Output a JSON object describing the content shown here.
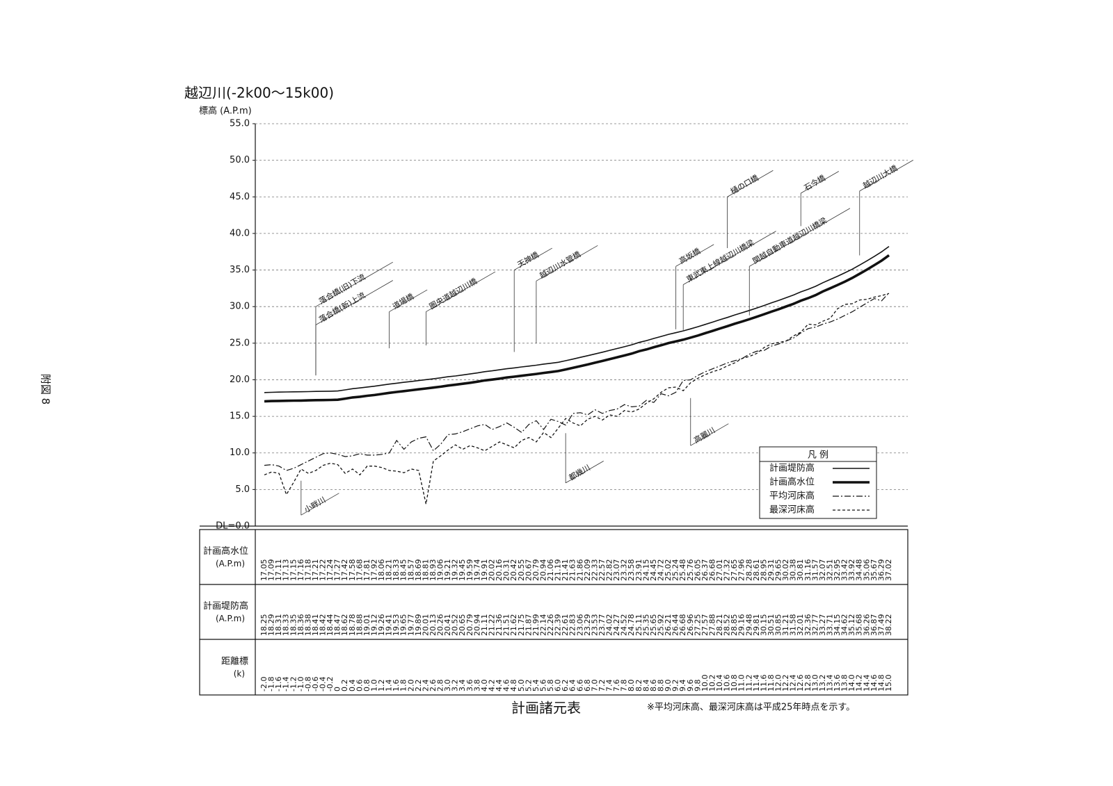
{
  "page": {
    "label": "附図 8"
  },
  "chart_data": {
    "type": "line",
    "title": "越辺川(-2k00～15k00)",
    "y_label": "標高 (A.P.m)",
    "ylim": [
      0,
      55
    ],
    "yticks": [
      {
        "value": 0,
        "label": "DL=0.0"
      },
      {
        "value": 5,
        "label": "5.0"
      },
      {
        "value": 10,
        "label": "10.0"
      },
      {
        "value": 15,
        "label": "15.0"
      },
      {
        "value": 20,
        "label": "20.0"
      },
      {
        "value": 25,
        "label": "25.0"
      },
      {
        "value": 30,
        "label": "30.0"
      },
      {
        "value": 35,
        "label": "35.0"
      },
      {
        "value": 40,
        "label": "40.0"
      },
      {
        "value": 45,
        "label": "45.0"
      },
      {
        "value": 50,
        "label": "50.0"
      },
      {
        "value": 55,
        "label": "55.0"
      }
    ],
    "grid": true,
    "categories": [
      "-2.0",
      "-1.8",
      "-1.6",
      "-1.4",
      "-1.2",
      "-1.0",
      "-0.8",
      "-0.6",
      "-0.4",
      "-0.2",
      "0",
      "0.2",
      "0.4",
      "0.6",
      "0.8",
      "1.0",
      "1.2",
      "1.4",
      "1.6",
      "1.8",
      "2.0",
      "2.2",
      "2.4",
      "2.6",
      "2.8",
      "3.0",
      "3.2",
      "3.4",
      "3.6",
      "3.8",
      "4.0",
      "4.2",
      "4.4",
      "4.6",
      "4.8",
      "5.0",
      "5.2",
      "5.4",
      "5.6",
      "5.8",
      "6.0",
      "6.2",
      "6.4",
      "6.6",
      "6.8",
      "7.0",
      "7.2",
      "7.4",
      "7.6",
      "7.8",
      "8.0",
      "8.2",
      "8.4",
      "8.6",
      "8.8",
      "9.0",
      "9.2",
      "9.4",
      "9.6",
      "9.8",
      "10.0",
      "10.2",
      "10.4",
      "10.6",
      "10.8",
      "11.0",
      "11.2",
      "11.4",
      "11.6",
      "11.8",
      "12.0",
      "12.2",
      "12.4",
      "12.6",
      "12.8",
      "13.0",
      "13.2",
      "13.4",
      "13.6",
      "13.8",
      "14.0",
      "14.2",
      "14.4",
      "14.6",
      "14.8",
      "15.0"
    ],
    "legend_title": "凡 例",
    "legend": "lower right",
    "series": [
      {
        "name": "計画堤防高",
        "color": "#111111",
        "style": "solid",
        "values": [
          18.25,
          18.29,
          18.31,
          18.33,
          18.35,
          18.36,
          18.38,
          18.41,
          18.42,
          18.44,
          18.47,
          18.62,
          18.78,
          18.88,
          19.01,
          19.12,
          19.26,
          19.41,
          19.53,
          19.65,
          19.77,
          19.89,
          20.01,
          20.13,
          20.26,
          20.41,
          20.52,
          20.65,
          20.79,
          20.94,
          21.11,
          21.22,
          21.36,
          21.51,
          21.62,
          21.75,
          21.87,
          21.99,
          22.14,
          22.26,
          22.39,
          22.61,
          22.83,
          23.06,
          23.29,
          23.53,
          23.77,
          24.02,
          24.27,
          24.52,
          24.78,
          25.11,
          25.35,
          25.65,
          25.92,
          26.21,
          26.44,
          26.68,
          26.96,
          27.25,
          27.57,
          27.88,
          28.21,
          28.52,
          28.85,
          29.16,
          29.48,
          29.81,
          30.15,
          30.51,
          30.85,
          31.21,
          31.58,
          32.01,
          32.36,
          32.77,
          33.27,
          33.71,
          34.15,
          34.62,
          35.12,
          35.68,
          36.26,
          36.87,
          37.49,
          38.22
        ]
      },
      {
        "name": "計画高水位",
        "color": "#111111",
        "style": "thick",
        "values": [
          17.05,
          17.09,
          17.11,
          17.13,
          17.15,
          17.16,
          17.18,
          17.21,
          17.22,
          17.24,
          17.27,
          17.42,
          17.58,
          17.68,
          17.81,
          17.92,
          18.06,
          18.21,
          18.33,
          18.45,
          18.57,
          18.69,
          18.81,
          18.93,
          19.06,
          19.21,
          19.32,
          19.45,
          19.59,
          19.74,
          19.91,
          20.02,
          20.16,
          20.31,
          20.42,
          20.55,
          20.67,
          20.79,
          20.94,
          21.06,
          21.19,
          21.41,
          21.63,
          21.86,
          22.09,
          22.33,
          22.57,
          22.82,
          23.07,
          23.32,
          23.58,
          23.91,
          24.15,
          24.45,
          24.72,
          25.02,
          25.24,
          25.48,
          25.76,
          26.05,
          26.37,
          26.68,
          27.01,
          27.32,
          27.65,
          27.96,
          28.28,
          28.61,
          28.95,
          29.31,
          29.65,
          30.02,
          30.38,
          30.81,
          31.16,
          31.57,
          32.07,
          32.51,
          32.95,
          33.42,
          33.92,
          34.48,
          35.06,
          35.67,
          36.29,
          37.02
        ]
      },
      {
        "name": "平均河床高",
        "color": "#111111",
        "style": "dashdot",
        "values": [
          8.3,
          8.4,
          8.2,
          7.6,
          7.9,
          8.4,
          8.9,
          9.4,
          9.9,
          10.0,
          9.8,
          9.5,
          9.6,
          9.9,
          9.7,
          9.7,
          9.8,
          10.0,
          11.7,
          10.5,
          11.5,
          12.0,
          12.2,
          10.3,
          11.2,
          12.5,
          12.6,
          12.9,
          13.3,
          13.7,
          13.9,
          13.2,
          13.6,
          14.1,
          13.5,
          12.8,
          13.9,
          14.4,
          13.2,
          14.6,
          14.3,
          13.8,
          15.4,
          15.5,
          15.2,
          15.9,
          15.4,
          15.8,
          16.0,
          16.6,
          16.3,
          16.4,
          17.2,
          16.9,
          18.1,
          17.8,
          18.3,
          19.9,
          20.0,
          20.6,
          21.1,
          21.5,
          21.9,
          22.3,
          22.6,
          22.9,
          23.5,
          23.9,
          24.0,
          24.6,
          24.9,
          25.3,
          25.7,
          26.4,
          27.0,
          27.2,
          27.6,
          27.9,
          28.3,
          28.8,
          29.3,
          29.9,
          30.5,
          31.1,
          30.8,
          31.9
        ]
      },
      {
        "name": "最深河床高",
        "color": "#111111",
        "style": "dashed",
        "values": [
          7.0,
          7.4,
          7.2,
          4.3,
          6.0,
          7.8,
          7.2,
          7.6,
          8.3,
          8.6,
          8.4,
          7.2,
          7.8,
          7.0,
          8.2,
          8.2,
          8.0,
          7.6,
          7.5,
          7.3,
          7.8,
          7.6,
          3.0,
          8.9,
          9.6,
          10.4,
          11.1,
          10.5,
          11.0,
          10.7,
          10.3,
          10.9,
          11.5,
          11.1,
          10.7,
          11.7,
          12.1,
          11.5,
          12.8,
          12.1,
          13.4,
          14.7,
          14.1,
          13.7,
          14.6,
          15.0,
          14.5,
          15.2,
          15.0,
          15.8,
          15.6,
          16.0,
          16.8,
          17.4,
          18.3,
          18.9,
          19.0,
          18.5,
          19.6,
          20.2,
          20.7,
          21.1,
          21.4,
          21.9,
          22.3,
          22.9,
          23.2,
          23.6,
          24.4,
          24.9,
          25.1,
          25.3,
          26.0,
          26.5,
          27.6,
          27.5,
          28.0,
          28.4,
          29.7,
          30.3,
          30.4,
          30.9,
          31.0,
          31.3,
          31.5,
          31.8
        ]
      }
    ],
    "annotations": [
      {
        "text": "落合橋(旧)下流",
        "x": "-0.6"
      },
      {
        "text": "落合橋(新)上流",
        "x": "-0.6"
      },
      {
        "text": "道場橋",
        "x": "1.4"
      },
      {
        "text": "圏央道越辺川橋",
        "x": "2.4"
      },
      {
        "text": "天神橋",
        "x": "4.8"
      },
      {
        "text": "越辺川水管橋",
        "x": "5.4"
      },
      {
        "text": "高坂橋",
        "x": "9.2"
      },
      {
        "text": "東武東上線越辺川橋梁",
        "x": "9.4"
      },
      {
        "text": "樋の口橋",
        "x": "10.6"
      },
      {
        "text": "関越自動車道越辺川橋梁",
        "x": "11.2"
      },
      {
        "text": "石今橋",
        "x": "12.6"
      },
      {
        "text": "越辺川大橋",
        "x": "14.2"
      },
      {
        "text": "小畔川",
        "x": "-1.0"
      },
      {
        "text": "都幾川",
        "x": "6.2"
      },
      {
        "text": "高麗川",
        "x": "9.6"
      }
    ],
    "table": {
      "rows": [
        {
          "label": "計画高水位",
          "unit": "(A.P.m)"
        },
        {
          "label": "計画堤防高",
          "unit": "(A.P.m)"
        },
        {
          "label": "距離標",
          "unit": "(k)"
        }
      ]
    },
    "footer": "計画諸元表",
    "note": "※平均河床高、最深河床高は平成25年時点を示す。"
  }
}
